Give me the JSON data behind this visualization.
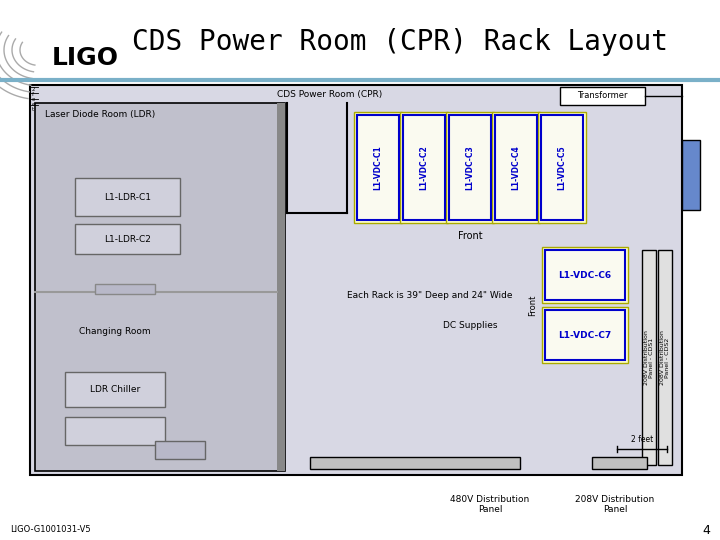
{
  "title": "CDS Power Room (CPR) Rack Layout",
  "title_fontsize": 20,
  "bg_color": "#ffffff",
  "header_line_color": "#7ab0c8",
  "room_label": "CDS Power Room (CPR)",
  "transformer_label": "Transformer",
  "ldr_label": "Laser Diode Room (LDR)",
  "changing_room_label": "Changing Room",
  "ldr_chiller_label": "LDR Chiller",
  "front_label": "Front",
  "front_label2": "Front",
  "rack_info_label": "Each Rack is 39\" Deep and 24\" Wide",
  "dc_supplies_label": "DC Supplies",
  "rack_labels": [
    "L1-VDC-C1",
    "L1-VDC-C2",
    "L1-VDC-C3",
    "L1-VDC-C4",
    "L1-VDC-C5"
  ],
  "rack_c6_label": "L1-VDC-C6",
  "rack_c7_label": "L1-VDC-C7",
  "ldr_c1_label": "L1-LDR-C1",
  "ldr_c2_label": "L1-LDR-C2",
  "dist_panel1_label": "480V Distribution\nPanel",
  "dist_panel2_label": "208V Distribution\nPanel",
  "dist_vert1_label": "208V Distribution\nPanel - CDS1",
  "dist_vert2_label": "208V Distribution\nPanel - CDS2",
  "foot_label": "2 feet",
  "doc_number": "LIGO-G1001031-V5",
  "page_number": "4",
  "rack_fill": "#ffffcc",
  "rack_edge": "#0000cc",
  "ldr_room_fill": "#c0c0cc",
  "cpr_room_fill": "#d8d8e4",
  "box_fill": "#c8c8d8",
  "transformer_fill": "#ffffff",
  "blue_box_fill": "#6688cc",
  "inner_box_fill": "#d0d0dc",
  "ldr_wall_fill": "#888888"
}
